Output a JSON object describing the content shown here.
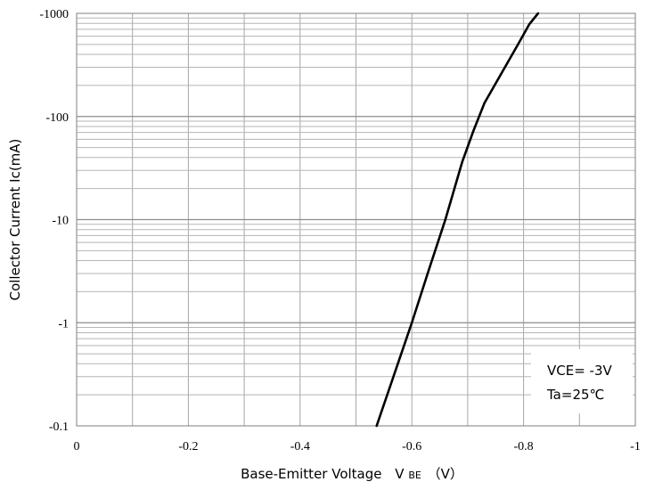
{
  "chart_data": {
    "type": "line",
    "xlabel": "Base-Emitter Voltage",
    "xlabel_symbol_main": "V",
    "xlabel_symbol_sub": "BE",
    "xlabel_unit": "（V）",
    "ylabel": "Collector Current   Ic(mA)",
    "x_ticks": [
      "0",
      "-0.2",
      "-0.4",
      "-0.6",
      "-0.8",
      "-1"
    ],
    "x_tick_values": [
      0,
      -0.2,
      -0.4,
      -0.6,
      -0.8,
      -1
    ],
    "y_ticks": [
      "-0.1",
      "-1",
      "-10",
      "-100",
      "-1000"
    ],
    "y_tick_values": [
      -0.1,
      -1,
      -10,
      -100,
      -1000
    ],
    "xlim": [
      0,
      -1
    ],
    "ylim": [
      -0.1,
      -1000
    ],
    "y_scale": "log",
    "grid": true,
    "annotations": [
      "VCE= -3V",
      "Ta=25℃"
    ],
    "series": [
      {
        "color": "#000000",
        "x": [
          -0.537,
          -0.6,
          -0.63,
          -0.66,
          -0.69,
          -0.71,
          -0.73,
          -0.76,
          -0.79,
          -0.81,
          -0.826
        ],
        "y": [
          -0.1,
          -1,
          -3.2,
          -10,
          -36,
          -72,
          -135,
          -260,
          -500,
          -780,
          -1000
        ]
      }
    ]
  }
}
